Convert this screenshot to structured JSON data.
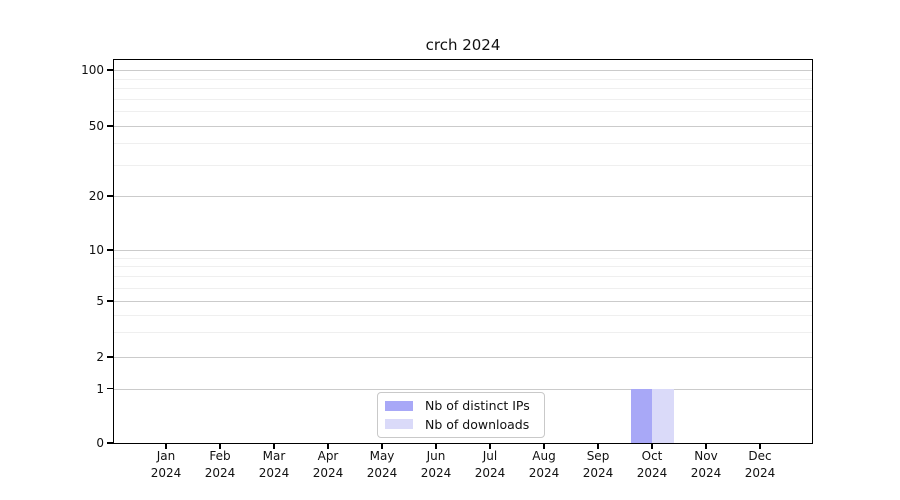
{
  "chart_data": {
    "type": "bar",
    "title": "crch 2024",
    "categories": [
      "Jan 2024",
      "Feb 2024",
      "Mar 2024",
      "Apr 2024",
      "May 2024",
      "Jun 2024",
      "Jul 2024",
      "Aug 2024",
      "Sep 2024",
      "Oct 2024",
      "Nov 2024",
      "Dec 2024"
    ],
    "series": [
      {
        "name": "Nb of distinct IPs",
        "color": "#a8a8f7",
        "values": [
          0,
          0,
          0,
          0,
          0,
          0,
          0,
          0,
          0,
          1,
          0,
          0
        ]
      },
      {
        "name": "Nb of downloads",
        "color": "#dadaf9",
        "values": [
          0,
          0,
          0,
          0,
          0,
          0,
          0,
          0,
          0,
          1,
          0,
          0
        ]
      }
    ],
    "yscale": "symlog",
    "ylim": [
      0,
      120
    ],
    "y_major_ticks": [
      0,
      1,
      2,
      5,
      10,
      20,
      50,
      100
    ],
    "y_minor_ticks": [
      3,
      4,
      6,
      7,
      8,
      9,
      30,
      40,
      60,
      70,
      80,
      90
    ],
    "grid": "horizontal",
    "legend": {
      "position": "lower center",
      "entries": [
        "Nb of distinct IPs",
        "Nb of downloads"
      ]
    }
  },
  "colors": {
    "bar_distinct_ips": "#a8a8f7",
    "bar_downloads": "#dadaf9",
    "grid_major": "#cbcbcb",
    "grid_minor": "#efefef",
    "axis": "#000000",
    "background": "#ffffff"
  }
}
